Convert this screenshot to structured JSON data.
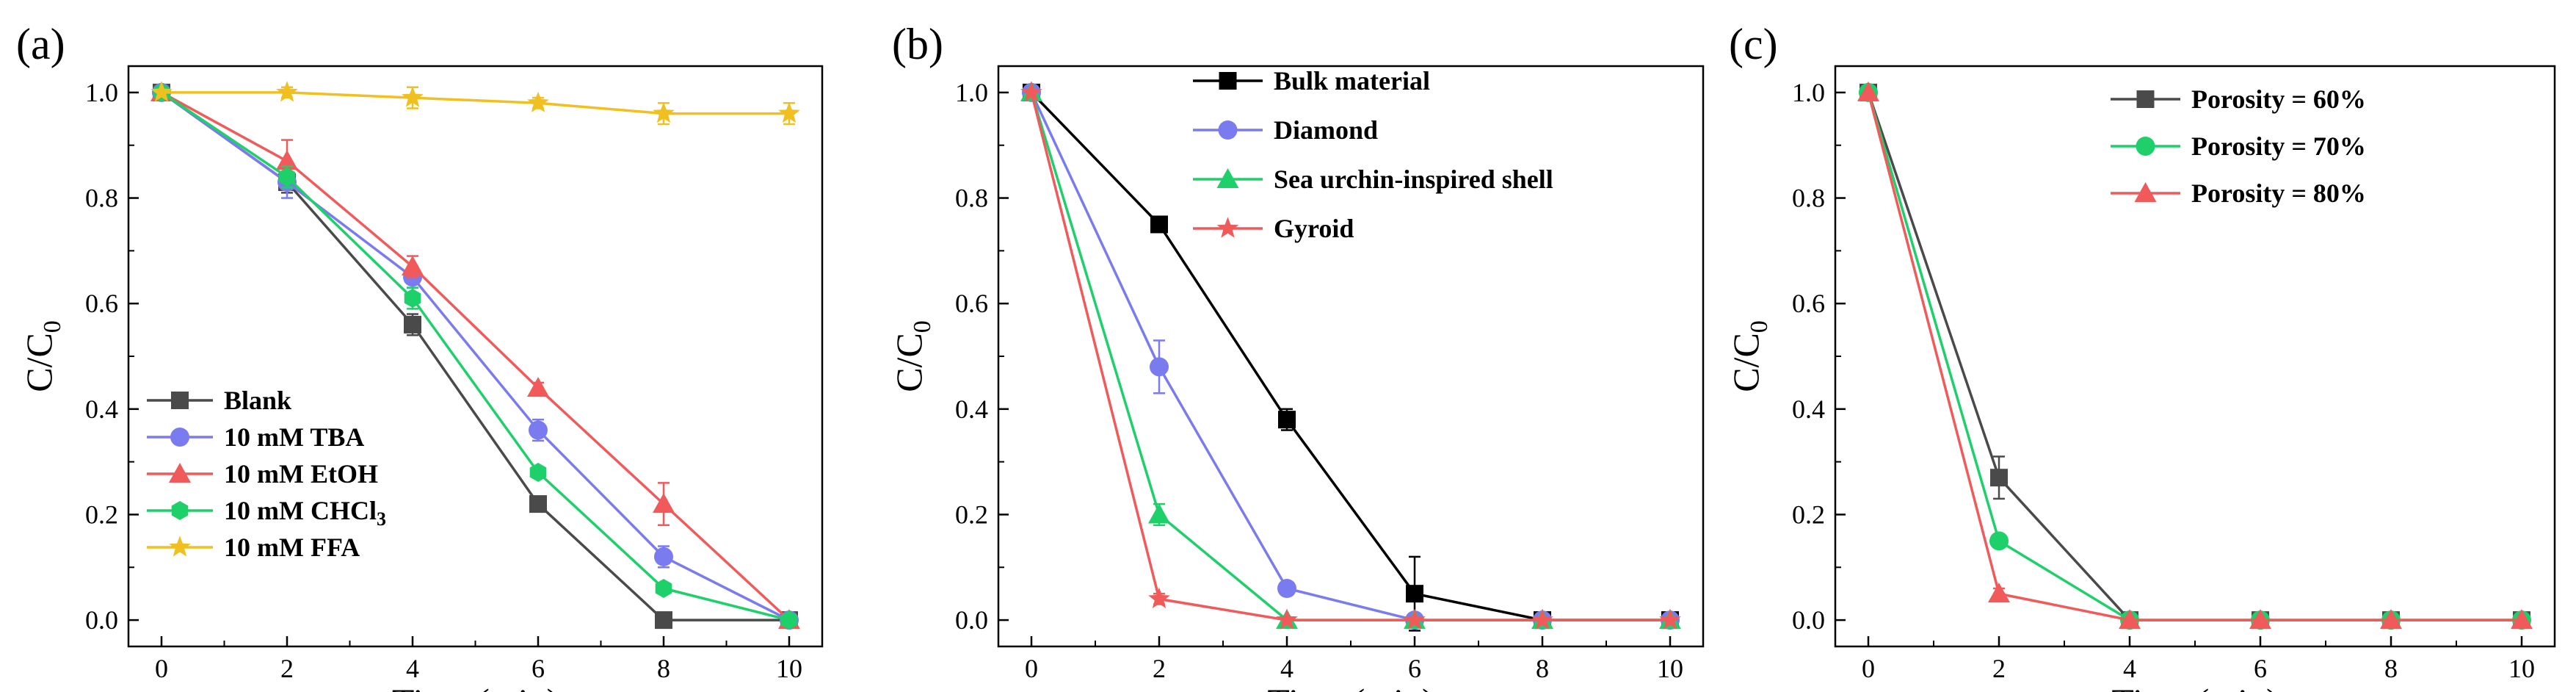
{
  "chart_data": [
    {
      "type": "line",
      "panel_label": "(a)",
      "xlabel": "Time (min)",
      "ylabel": "C/C",
      "ylabel_sub": "0",
      "xlim": [
        0,
        10
      ],
      "ylim": [
        -0.05,
        1.05
      ],
      "xticks": [
        0,
        2,
        4,
        6,
        8,
        10
      ],
      "yticks": [
        0.0,
        0.2,
        0.4,
        0.6,
        0.8,
        1.0
      ],
      "legend_position": "bottom-left",
      "series": [
        {
          "name": "Blank",
          "color": "#4a4a4a",
          "marker": "square",
          "x": [
            0,
            2,
            4,
            6,
            8,
            10
          ],
          "y": [
            1.0,
            0.83,
            0.56,
            0.22,
            0.0,
            0.0
          ],
          "err": [
            0,
            0.02,
            0.02,
            0.01,
            0,
            0
          ]
        },
        {
          "name": "10 mM TBA",
          "color": "#7b7bf0",
          "marker": "circle",
          "x": [
            0,
            2,
            4,
            6,
            8,
            10
          ],
          "y": [
            1.0,
            0.83,
            0.65,
            0.36,
            0.12,
            0.0
          ],
          "err": [
            0,
            0.03,
            0.02,
            0.02,
            0.02,
            0
          ]
        },
        {
          "name": "10 mM EtOH",
          "color": "#f05a5a",
          "marker": "triangle",
          "x": [
            0,
            2,
            4,
            6,
            8,
            10
          ],
          "y": [
            1.0,
            0.87,
            0.67,
            0.44,
            0.22,
            0.0
          ],
          "err": [
            0,
            0.04,
            0.02,
            0.01,
            0.04,
            0
          ]
        },
        {
          "name": "10 mM CHCl",
          "name_sub": "3",
          "color": "#1ed06a",
          "marker": "hexagon",
          "x": [
            0,
            2,
            4,
            6,
            8,
            10
          ],
          "y": [
            1.0,
            0.84,
            0.61,
            0.28,
            0.06,
            0.0
          ],
          "err": [
            0,
            0.02,
            0.02,
            0.01,
            0.01,
            0
          ]
        },
        {
          "name": "10 mM FFA",
          "color": "#f0c020",
          "marker": "star",
          "x": [
            0,
            2,
            4,
            6,
            8,
            10
          ],
          "y": [
            1.0,
            1.0,
            0.99,
            0.98,
            0.96,
            0.96
          ],
          "err": [
            0,
            0.01,
            0.02,
            0.01,
            0.02,
            0.02
          ]
        }
      ]
    },
    {
      "type": "line",
      "panel_label": "(b)",
      "xlabel": "Time (min)",
      "ylabel": "C/C",
      "ylabel_sub": "0",
      "xlim": [
        0,
        10
      ],
      "ylim": [
        -0.05,
        1.05
      ],
      "xticks": [
        0,
        2,
        4,
        6,
        8,
        10
      ],
      "yticks": [
        0.0,
        0.2,
        0.4,
        0.6,
        0.8,
        1.0
      ],
      "legend_position": "top-right",
      "series": [
        {
          "name": "Bulk material",
          "color": "#000000",
          "marker": "square",
          "x": [
            0,
            2,
            4,
            6,
            8,
            10
          ],
          "y": [
            1.0,
            0.75,
            0.38,
            0.05,
            0.0,
            0.0
          ],
          "err": [
            0,
            0.01,
            0.02,
            0.07,
            0,
            0
          ]
        },
        {
          "name": "Diamond",
          "color": "#7b7bf0",
          "marker": "circle",
          "x": [
            0,
            2,
            4,
            6,
            8,
            10
          ],
          "y": [
            1.0,
            0.48,
            0.06,
            0.0,
            0.0,
            0.0
          ],
          "err": [
            0,
            0.05,
            0.01,
            0,
            0,
            0
          ]
        },
        {
          "name": "Sea urchin-inspired shell",
          "color": "#1ed06a",
          "marker": "triangle",
          "x": [
            0,
            2,
            4,
            6,
            8,
            10
          ],
          "y": [
            1.0,
            0.2,
            0.0,
            0.0,
            0.0,
            0.0
          ],
          "err": [
            0,
            0.02,
            0,
            0,
            0,
            0
          ]
        },
        {
          "name": "Gyroid",
          "color": "#f05a5a",
          "marker": "star",
          "x": [
            0,
            2,
            4,
            6,
            8,
            10
          ],
          "y": [
            1.0,
            0.04,
            0.0,
            0.0,
            0.0,
            0.0
          ],
          "err": [
            0,
            0.01,
            0,
            0,
            0,
            0
          ]
        }
      ]
    },
    {
      "type": "line",
      "panel_label": "(c)",
      "xlabel": "Time (min)",
      "ylabel": "C/C",
      "ylabel_sub": "0",
      "xlim": [
        0,
        10
      ],
      "ylim": [
        -0.05,
        1.05
      ],
      "xticks": [
        0,
        2,
        4,
        6,
        8,
        10
      ],
      "yticks": [
        0.0,
        0.2,
        0.4,
        0.6,
        0.8,
        1.0
      ],
      "legend_position": "top-right",
      "series": [
        {
          "name": "Porosity = 60%",
          "color": "#4a4a4a",
          "marker": "square",
          "x": [
            0,
            2,
            4,
            6,
            8,
            10
          ],
          "y": [
            1.0,
            0.27,
            0.0,
            0.0,
            0.0,
            0.0
          ],
          "err": [
            0,
            0.04,
            0,
            0,
            0,
            0
          ]
        },
        {
          "name": "Porosity = 70%",
          "color": "#1ed06a",
          "marker": "circle",
          "x": [
            0,
            2,
            4,
            6,
            8,
            10
          ],
          "y": [
            1.0,
            0.15,
            0.0,
            0.0,
            0.0,
            0.0
          ],
          "err": [
            0,
            0.01,
            0,
            0,
            0,
            0
          ]
        },
        {
          "name": "Porosity = 80%",
          "color": "#f05a5a",
          "marker": "triangle",
          "x": [
            0,
            2,
            4,
            6,
            8,
            10
          ],
          "y": [
            1.0,
            0.05,
            0.0,
            0.0,
            0.0,
            0.0
          ],
          "err": [
            0,
            0.01,
            0,
            0,
            0,
            0
          ]
        }
      ]
    }
  ]
}
